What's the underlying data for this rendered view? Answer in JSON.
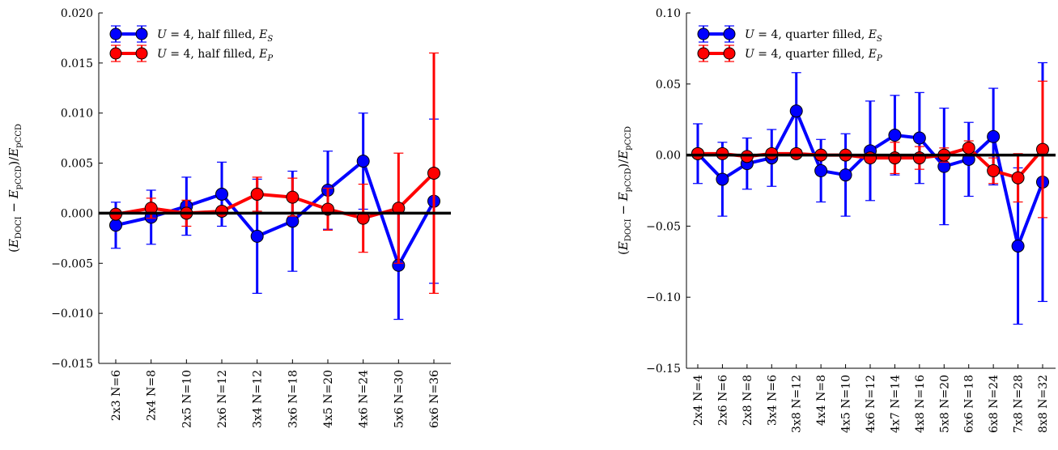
{
  "chart_data": [
    {
      "type": "line",
      "title": "",
      "xlabel": "",
      "ylabel": "(E_DOCI − E_pCCD)/E_pCCD",
      "ylabel_parts": {
        "open": "(",
        "e1": "E",
        "s1": "DOCI",
        "minus": " − ",
        "e2": "E",
        "s2": "pCCD",
        "close": ")/",
        "e3": "E",
        "s3": "pCCD"
      },
      "ylim": [
        -0.015,
        0.02
      ],
      "yticks": [
        -0.015,
        -0.01,
        -0.005,
        0.0,
        0.005,
        0.01,
        0.015,
        0.02
      ],
      "ytick_labels": [
        "−0.015",
        "−0.010",
        "−0.005",
        "0.000",
        "0.005",
        "0.010",
        "0.015",
        "0.020"
      ],
      "reference_line": 0,
      "legend_position": "top-left",
      "categories": [
        "2x3 N=6",
        "2x4 N=8",
        "2x5 N=10",
        "2x6 N=12",
        "3x4 N=12",
        "3x6 N=18",
        "4x5 N=20",
        "4x6 N=24",
        "5x6 N=30",
        "6x6 N=36"
      ],
      "series": [
        {
          "name": "U = 4, half filled, E_S",
          "legend_parts": {
            "pre": "U",
            "mid": " = 4, half filled, ",
            "e": "E",
            "sub": "S"
          },
          "color": "#0000ff",
          "values": [
            -0.0012,
            -0.0004,
            0.0007,
            0.0019,
            -0.0023,
            -0.0008,
            0.0023,
            0.0052,
            -0.0052,
            0.0012
          ],
          "errors": [
            0.0023,
            0.0027,
            0.0029,
            0.0032,
            0.0057,
            0.005,
            0.0039,
            0.0048,
            0.0054,
            0.0082
          ]
        },
        {
          "name": "U = 4, half filled, E_P",
          "legend_parts": {
            "pre": "U",
            "mid": " = 4, half filled, ",
            "e": "E",
            "sub": "P"
          },
          "color": "#ff0000",
          "values": [
            -0.0001,
            0.0005,
            0.0,
            0.0002,
            0.0019,
            0.0016,
            0.0004,
            -0.0005,
            0.0005,
            0.004
          ],
          "errors": [
            0.0004,
            0.001,
            0.0013,
            0.0003,
            0.0017,
            0.0019,
            0.0021,
            0.0034,
            0.0055,
            0.012
          ]
        }
      ]
    },
    {
      "type": "line",
      "title": "",
      "xlabel": "",
      "ylabel": "(E_DOCI − E_pCCD)/E_pCCD",
      "ylabel_parts": {
        "open": "(",
        "e1": "E",
        "s1": "DOCI",
        "minus": " − ",
        "e2": "E",
        "s2": "pCCD",
        "close": ")/",
        "e3": "E",
        "s3": "pCCD"
      },
      "ylim": [
        -0.15,
        0.1
      ],
      "yticks": [
        -0.15,
        -0.1,
        -0.05,
        0.0,
        0.05,
        0.1
      ],
      "ytick_labels": [
        "−0.15",
        "−0.10",
        "−0.05",
        "0.00",
        "0.05",
        "0.10"
      ],
      "reference_line": 0,
      "legend_position": "top-left",
      "categories": [
        "2x4 N=4",
        "2x6 N=6",
        "2x8 N=8",
        "3x4 N=6",
        "3x8 N=12",
        "4x4 N=8",
        "4x5 N=10",
        "4x6 N=12",
        "4x7 N=14",
        "4x8 N=16",
        "5x8 N=20",
        "6x6 N=18",
        "6x8 N=24",
        "7x8 N=28",
        "8x8 N=32"
      ],
      "series": [
        {
          "name": "U = 4, quarter filled, E_S",
          "legend_parts": {
            "pre": "U",
            "mid": " = 4, quarter filled, ",
            "e": "E",
            "sub": "S"
          },
          "color": "#0000ff",
          "values": [
            0.001,
            -0.017,
            -0.006,
            -0.002,
            0.031,
            -0.011,
            -0.014,
            0.003,
            0.014,
            0.012,
            -0.008,
            -0.003,
            0.013,
            -0.064,
            -0.019
          ],
          "errors": [
            0.021,
            0.026,
            0.018,
            0.02,
            0.027,
            0.022,
            0.029,
            0.035,
            0.028,
            0.032,
            0.041,
            0.026,
            0.034,
            0.055,
            0.084
          ]
        },
        {
          "name": "U = 4, quarter filled, E_P",
          "legend_parts": {
            "pre": "U",
            "mid": " = 4, quarter filled, ",
            "e": "E",
            "sub": "P"
          },
          "color": "#ff0000",
          "values": [
            0.001,
            0.001,
            -0.001,
            0.001,
            0.001,
            0.0,
            0.0,
            -0.002,
            -0.002,
            -0.002,
            0.0,
            0.005,
            -0.011,
            -0.016,
            0.004
          ],
          "errors": [
            0.002,
            0.002,
            0.002,
            0.002,
            0.002,
            0.002,
            0.002,
            0.003,
            0.011,
            0.008,
            0.005,
            0.005,
            0.009,
            0.017,
            0.048
          ]
        }
      ]
    }
  ]
}
